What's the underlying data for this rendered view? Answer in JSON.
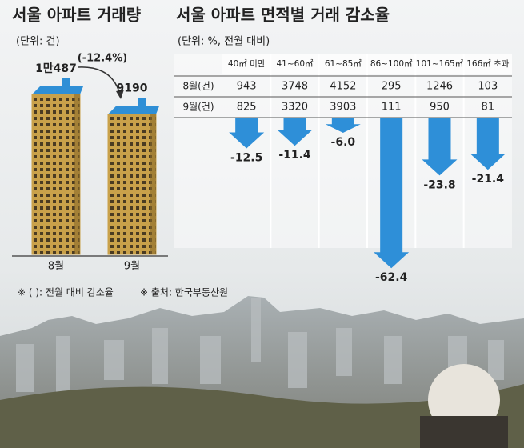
{
  "chart_data": [
    {
      "type": "building",
      "title": "서울 아파트 거래량",
      "subtitle": "(단위: 건)",
      "categories": [
        "8월",
        "9월"
      ],
      "values": [
        10487,
        9190
      ],
      "value_labels": [
        "1만487",
        "9190"
      ],
      "annotation": "(-12.4%)",
      "color": "#c9a14a",
      "roof_color": "#2f8fd6"
    },
    {
      "type": "arrow",
      "title": "서울 아파트 면적별 거래 감소율",
      "subtitle": "(단위: %, 전월 대비)",
      "categories": [
        "40㎡ 미만",
        "41~60㎡",
        "61~85㎡",
        "86~100㎡",
        "101~165㎡",
        "166㎡ 초과"
      ],
      "table": {
        "rows": [
          {
            "name": "8월(건)",
            "values": [
              943,
              3748,
              4152,
              295,
              1246,
              103
            ]
          },
          {
            "name": "9월(건)",
            "values": [
              825,
              3320,
              3903,
              111,
              950,
              81
            ]
          }
        ]
      },
      "values": [
        -12.5,
        -11.4,
        -6.0,
        -62.4,
        -23.8,
        -21.4
      ],
      "value_labels": [
        "-12.5",
        "-11.4",
        "-6.0",
        "-62.4",
        "-23.8",
        "-21.4"
      ],
      "color": "#2e8fd8"
    }
  ],
  "notes": [
    "※ (   ): 전월 대비 감소율",
    "※ 출처: 한국부동산원"
  ]
}
